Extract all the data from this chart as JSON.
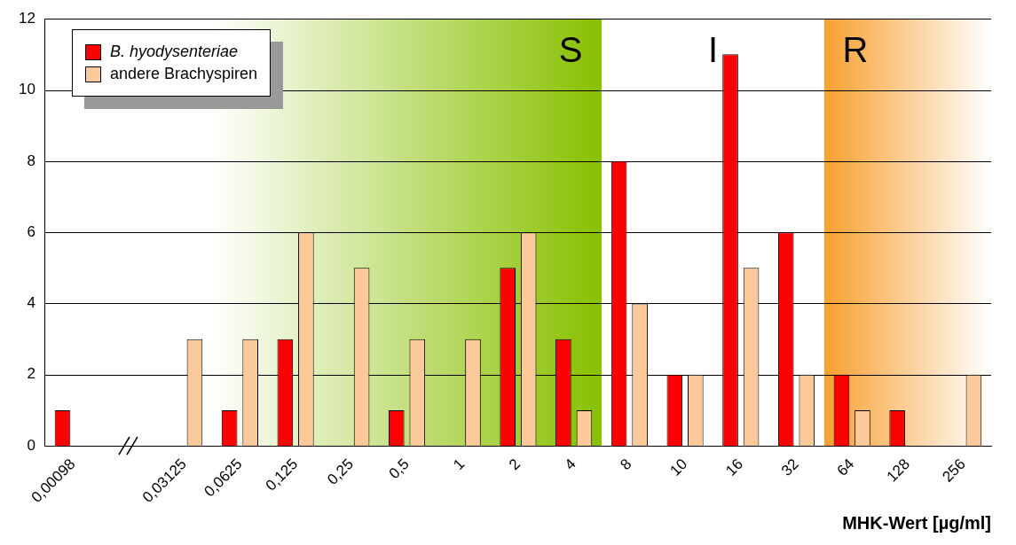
{
  "chart_data": {
    "type": "bar",
    "xlabel": "MHK-Wert [µg/ml]",
    "categories": [
      "0,00098",
      null,
      "0,03125",
      "0,0625",
      "0,125",
      "0,25",
      "0,5",
      "1",
      "2",
      "4",
      "8",
      "10",
      "16",
      "32",
      "64",
      "128",
      "256"
    ],
    "series": [
      {
        "name": "B. hyodysenteriae",
        "color": "#ff0000",
        "values": [
          1,
          0,
          0,
          1,
          3,
          0,
          1,
          0,
          5,
          3,
          8,
          2,
          11,
          6,
          2,
          1,
          0
        ]
      },
      {
        "name": "andere Brachyspiren",
        "color": "#fcc99a",
        "values": [
          0,
          0,
          3,
          3,
          6,
          5,
          3,
          3,
          6,
          1,
          4,
          2,
          5,
          2,
          1,
          0,
          2
        ]
      }
    ],
    "annotations": [
      "I"
    ],
    "ylim": [
      0,
      12
    ],
    "yticks": [
      0,
      2,
      4,
      6,
      8,
      10,
      12
    ],
    "grid": "y",
    "legend": "top left",
    "bands": [
      {
        "axis": "x",
        "from": "0,0625",
        "to": "4",
        "label": "S",
        "color": "#88c000"
      },
      {
        "axis": "x",
        "from": "64",
        "to": "256",
        "label": "R",
        "color": "#f7a030"
      }
    ]
  }
}
